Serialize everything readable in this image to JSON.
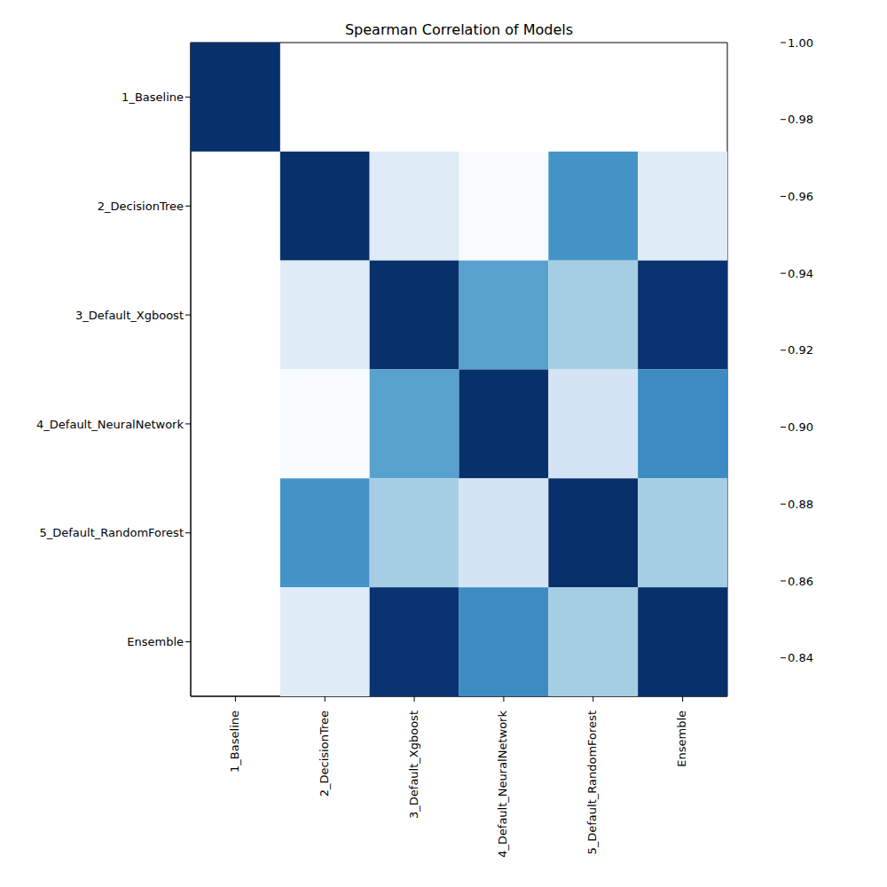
{
  "chart_data": {
    "type": "heatmap",
    "title": "Spearman Correlation of Models",
    "categories": [
      "1_Baseline",
      "2_DecisionTree",
      "3_Default_Xgboost",
      "4_Default_NeuralNetwork",
      "5_Default_RandomForest",
      "Ensemble"
    ],
    "cells": [
      [
        1,
        null,
        null,
        null,
        null,
        null
      ],
      [
        null,
        1,
        0.85,
        0.83,
        0.935,
        0.85
      ],
      [
        null,
        0.85,
        1,
        0.925,
        0.89,
        0.998
      ],
      [
        null,
        0.83,
        0.925,
        1,
        0.86,
        0.94
      ],
      [
        null,
        0.935,
        0.89,
        0.86,
        1,
        0.89
      ],
      [
        null,
        0.85,
        0.998,
        0.94,
        0.89,
        1
      ]
    ],
    "colorbar_lim": [
      0.83,
      1
    ],
    "colorbar_ticks": [
      0.84,
      0.86,
      0.88,
      {
        "value": 0.9,
        "label": "0.90"
      },
      0.92,
      0.94,
      0.96,
      0.98,
      {
        "value": 1,
        "label": "1.00"
      }
    ]
  }
}
